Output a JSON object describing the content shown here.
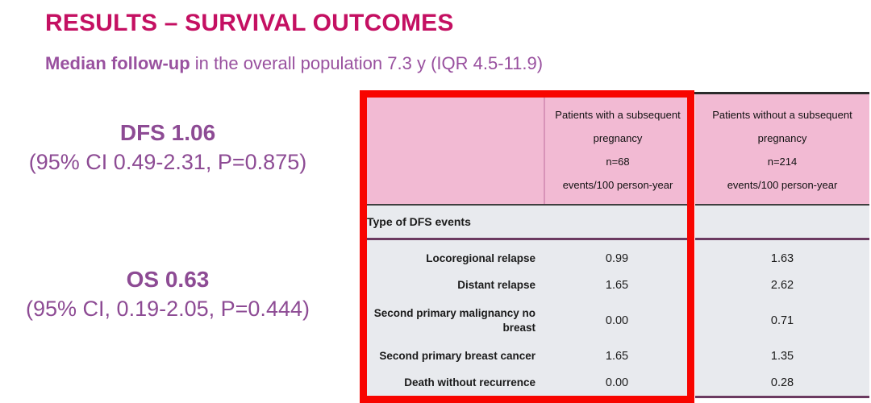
{
  "page": {
    "title": "RESULTS – SURVIVAL OUTCOMES",
    "subtitle_lead": "Median follow-up",
    "subtitle_rest": " in the overall population 7.3 y (IQR 4.5-11.9)"
  },
  "stats": {
    "dfs": {
      "value": "DFS 1.06",
      "ci": "(95% CI 0.49-2.31, P=0.875)"
    },
    "os": {
      "value": "OS 0.63",
      "ci": "(95% CI, 0.19-2.05, P=0.444)"
    }
  },
  "table": {
    "header_with": {
      "l1": "Patients with a subsequent",
      "l2": "pregnancy",
      "l3": "n=68",
      "l4": "events/100 person-year"
    },
    "header_without": {
      "l1": "Patients without a subsequent",
      "l2": "pregnancy",
      "l3": "n=214",
      "l4": "events/100 person-year"
    },
    "section_label": "Type of DFS events",
    "rows": [
      {
        "label": "Locoregional relapse",
        "with_pregnancy": "0.99",
        "without_pregnancy": "1.63"
      },
      {
        "label": "Distant relapse",
        "with_pregnancy": "1.65",
        "without_pregnancy": "2.62"
      },
      {
        "label": "Second primary malignancy no breast",
        "with_pregnancy": "0.00",
        "without_pregnancy": "0.71"
      },
      {
        "label": "Second primary breast cancer",
        "with_pregnancy": "1.65",
        "without_pregnancy": "1.35"
      },
      {
        "label": "Death without recurrence",
        "with_pregnancy": "0.00",
        "without_pregnancy": "0.28"
      }
    ]
  },
  "colors": {
    "title": "#c41062",
    "purple_text": "#8d4b94",
    "header_pink": "#f2bad3",
    "body_gray": "#e8eaee",
    "purple_rule": "#6b3a60",
    "highlight_red": "#f80500"
  },
  "chart_data": {
    "type": "table",
    "title": "Type of DFS events (events/100 person-year)",
    "categories": [
      "Locoregional relapse",
      "Distant relapse",
      "Second primary malignancy no breast",
      "Second primary breast cancer",
      "Death without recurrence"
    ],
    "series": [
      {
        "name": "Patients with a subsequent pregnancy n=68",
        "values": [
          0.99,
          1.65,
          0.0,
          1.65,
          0.0
        ]
      },
      {
        "name": "Patients without a subsequent pregnancy n=214",
        "values": [
          1.63,
          2.62,
          0.71,
          1.35,
          0.28
        ]
      }
    ]
  }
}
